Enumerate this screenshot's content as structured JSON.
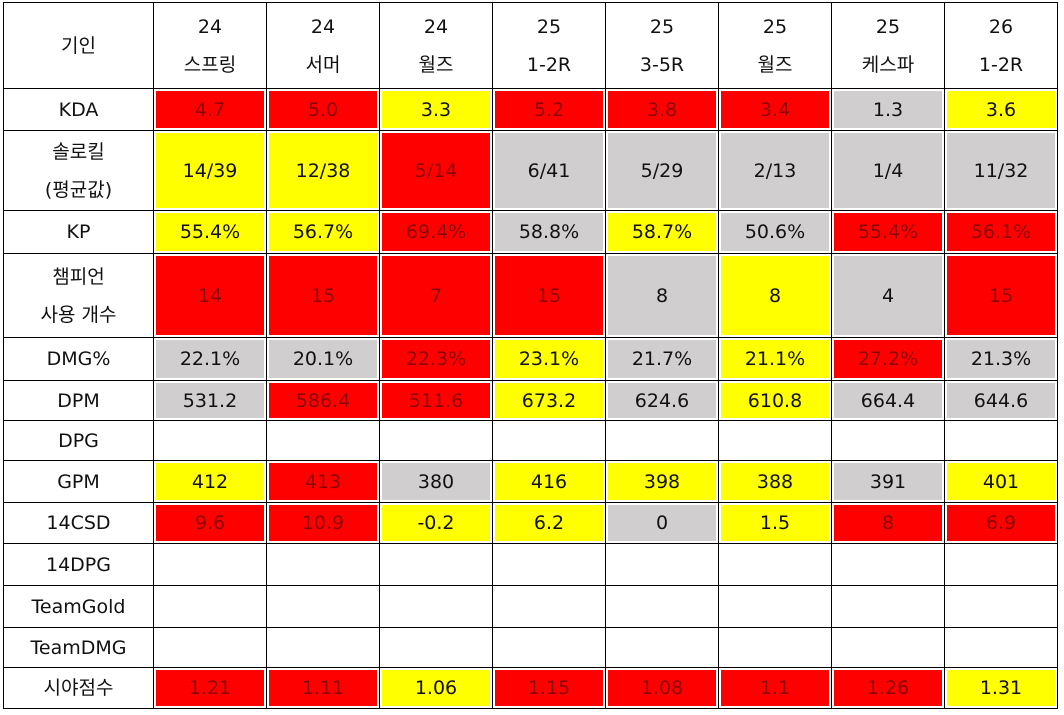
{
  "table": {
    "corner": "기인",
    "columns": [
      [
        "24",
        "스프링"
      ],
      [
        "24",
        "서머"
      ],
      [
        "24",
        "월즈"
      ],
      [
        "25",
        "1-2R"
      ],
      [
        "25",
        "3-5R"
      ],
      [
        "25",
        "월즈"
      ],
      [
        "25",
        "케스파"
      ],
      [
        "26",
        "1-2R"
      ]
    ],
    "rows": [
      {
        "label": [
          "KDA"
        ],
        "cells": [
          "4.7",
          "5.0",
          "3.3",
          "5.2",
          "3.8",
          "3.4",
          "1.3",
          "3.6"
        ],
        "colors": [
          "#ff0000",
          "#ff0000",
          "#ffff00",
          "#ff0000",
          "#ff0000",
          "#ff0000",
          "#d0cece",
          "#ffff00"
        ]
      },
      {
        "label": [
          "솔로킬",
          "(평균값)"
        ],
        "cells": [
          "14/39",
          "12/38",
          "5/14",
          "6/41",
          "5/29",
          "2/13",
          "1/4",
          "11/32"
        ],
        "colors": [
          "#ffff00",
          "#ffff00",
          "#ff0000",
          "#d0cece",
          "#d0cece",
          "#d0cece",
          "#d0cece",
          "#d0cece"
        ]
      },
      {
        "label": [
          "KP"
        ],
        "cells": [
          "55.4%",
          "56.7%",
          "69.4%",
          "58.8%",
          "58.7%",
          "50.6%",
          "55.4%",
          "56.1%"
        ],
        "colors": [
          "#ffff00",
          "#ffff00",
          "#ff0000",
          "#d0cece",
          "#ffff00",
          "#d0cece",
          "#ff0000",
          "#ff0000"
        ]
      },
      {
        "label": [
          "챔피언",
          "사용 개수"
        ],
        "cells": [
          "14",
          "15",
          "7",
          "15",
          "8",
          "8",
          "4",
          "15"
        ],
        "colors": [
          "#ff0000",
          "#ff0000",
          "#ff0000",
          "#ff0000",
          "#d0cece",
          "#ffff00",
          "#d0cece",
          "#ff0000"
        ]
      },
      {
        "label": [
          "DMG%"
        ],
        "cells": [
          "22.1%",
          "20.1%",
          "22.3%",
          "23.1%",
          "21.7%",
          "21.1%",
          "27.2%",
          "21.3%"
        ],
        "colors": [
          "#d0cece",
          "#d0cece",
          "#ff0000",
          "#ffff00",
          "#d0cece",
          "#ffff00",
          "#ff0000",
          "#d0cece"
        ]
      },
      {
        "label": [
          "DPM"
        ],
        "cells": [
          "531.2",
          "586.4",
          "511.6",
          "673.2",
          "624.6",
          "610.8",
          "664.4",
          "644.6"
        ],
        "colors": [
          "#d0cece",
          "#ff0000",
          "#ff0000",
          "#ffff00",
          "#d0cece",
          "#ffff00",
          "#d0cece",
          "#d0cece"
        ]
      },
      {
        "label": [
          "DPG"
        ],
        "cells": [
          null,
          null,
          null,
          null,
          null,
          null,
          null,
          null
        ],
        "colors": null
      },
      {
        "label": [
          "GPM"
        ],
        "cells": [
          "412",
          "413",
          "380",
          "416",
          "398",
          "388",
          "391",
          "401"
        ],
        "colors": [
          "#ffff00",
          "#ff0000",
          "#d0cece",
          "#ffff00",
          "#ffff00",
          "#ffff00",
          "#d0cece",
          "#ffff00"
        ]
      },
      {
        "label": [
          "14CSD"
        ],
        "cells": [
          "9.6",
          "10.9",
          "-0.2",
          "6.2",
          "0",
          "1.5",
          "8",
          "6.9"
        ],
        "colors": [
          "#ff0000",
          "#ff0000",
          "#ffff00",
          "#ffff00",
          "#d0cece",
          "#ffff00",
          "#ff0000",
          "#ff0000"
        ]
      },
      {
        "label": [
          "14DPG"
        ],
        "cells": [
          null,
          null,
          null,
          null,
          null,
          null,
          null,
          null
        ],
        "colors": null
      },
      {
        "label": [
          "TeamGold"
        ],
        "cells": [
          null,
          null,
          null,
          null,
          null,
          null,
          null,
          null
        ],
        "colors": null
      },
      {
        "label": [
          "TeamDMG"
        ],
        "cells": [
          null,
          null,
          null,
          null,
          null,
          null,
          null,
          null
        ],
        "colors": null
      },
      {
        "label": [
          "시야점수"
        ],
        "cells": [
          "1.21",
          "1.11",
          "1.06",
          "1.15",
          "1.08",
          "1.1",
          "1.26",
          "1.31"
        ],
        "colors": [
          "#ff0000",
          "#ff0000",
          "#ffff00",
          "#ff0000",
          "#ff0000",
          "#ff0000",
          "#ff0000",
          "#ffff00"
        ]
      }
    ]
  }
}
